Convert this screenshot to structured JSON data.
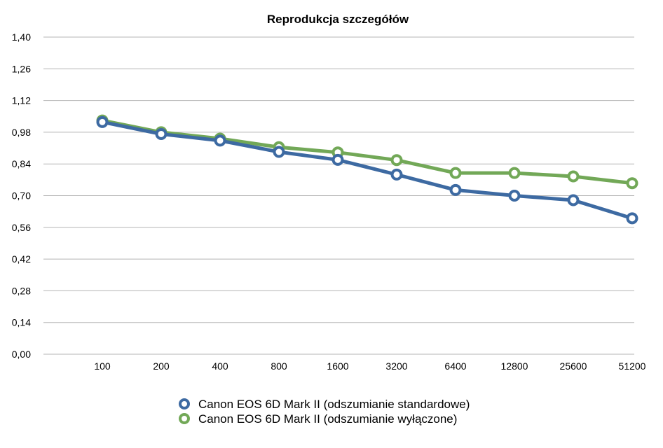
{
  "chart_data": {
    "type": "line",
    "title": "Reprodukcja szczegółów",
    "xlabel": "",
    "ylabel": "",
    "categories": [
      "100",
      "200",
      "400",
      "800",
      "1600",
      "3200",
      "6400",
      "12800",
      "25600",
      "51200"
    ],
    "y_ticks": [
      "0,00",
      "0,14",
      "0,28",
      "0,42",
      "0,56",
      "0,70",
      "0,84",
      "0,98",
      "1,12",
      "1,26",
      "1,40"
    ],
    "ylim": [
      0,
      1.4
    ],
    "grid": true,
    "legend_position": "bottom",
    "series": [
      {
        "name": "Canon EOS 6D Mark II (odszumianie standardowe)",
        "color": "#3d6aa2",
        "values": [
          1.025,
          0.972,
          0.943,
          0.893,
          0.858,
          0.793,
          0.725,
          0.7,
          0.68,
          0.6
        ]
      },
      {
        "name": "Canon EOS 6D Mark II (odszumianie wyłączone)",
        "color": "#72a857",
        "values": [
          1.032,
          0.98,
          0.952,
          0.914,
          0.891,
          0.857,
          0.8,
          0.8,
          0.785,
          0.755
        ]
      }
    ]
  }
}
